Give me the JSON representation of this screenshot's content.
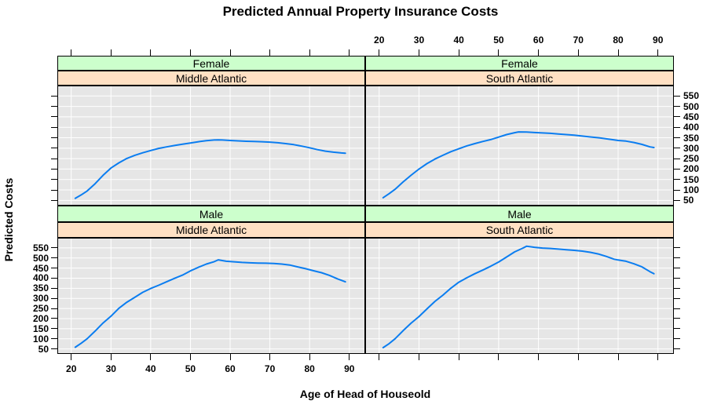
{
  "title": "Predicted Annual Property Insurance Costs",
  "axis_labels": {
    "x": "Age of Head of Houseold",
    "y": "Predicted Costs"
  },
  "colors": {
    "strip_gender_bg": "#ccffcc",
    "strip_region_bg": "#ffe0c3",
    "strip_border": "#000000",
    "panel_bg": "#e6e6e6",
    "gridline": "#ffffff",
    "line": "#0b7df0",
    "tick": "#000000",
    "text": "#000000",
    "background": "#ffffff"
  },
  "chart_data": {
    "type": "line",
    "title": "Predicted Annual Property Insurance Costs",
    "xlabel": "Age of Head of Houseold",
    "ylabel": "Predicted Costs",
    "layout": "2x2 trellis: rows = gender (Female top, Male bottom), columns = region (Middle Atlantic left, South Atlantic right); x tick labels on top for right column and bottom for left column; y tick labels on right for top-right panel and left for bottom-left panel; unlabeled ticks on remaining outer edges",
    "grid": true,
    "xlim": [
      16.5,
      94
    ],
    "ylim": [
      25,
      600
    ],
    "x_ticks": [
      20,
      30,
      40,
      50,
      60,
      70,
      80,
      90
    ],
    "y_ticks": [
      50,
      100,
      150,
      200,
      250,
      300,
      350,
      400,
      450,
      500,
      550
    ],
    "line_color": "#0b7df0",
    "panels": [
      {
        "position": "top-left",
        "gender": "Female",
        "region": "Middle Atlantic",
        "x": [
          21,
          22.5,
          24,
          26,
          28,
          30,
          32,
          34,
          36,
          38,
          40,
          42,
          44,
          46,
          48,
          50,
          52,
          54,
          56,
          57,
          58,
          60,
          62,
          64,
          66,
          68,
          70,
          72,
          74,
          76,
          78,
          80,
          82,
          84,
          86,
          88,
          89
        ],
        "y": [
          60,
          76,
          95,
          130,
          170,
          205,
          230,
          251,
          266,
          278,
          289,
          299,
          306,
          313,
          319,
          325,
          331,
          336,
          339,
          340,
          339,
          337,
          335,
          333,
          332,
          331,
          329,
          326,
          322,
          317,
          310,
          302,
          293,
          286,
          281,
          277,
          276
        ]
      },
      {
        "position": "top-right",
        "gender": "Female",
        "region": "South Atlantic",
        "x": [
          21,
          22.5,
          24,
          26,
          28,
          30,
          32,
          34,
          36,
          38,
          40,
          42,
          44,
          46,
          48,
          50,
          52,
          54,
          55,
          57,
          59,
          61,
          63,
          65,
          67,
          69,
          71,
          73,
          75,
          77,
          79,
          80,
          82,
          84,
          86,
          88,
          89
        ],
        "y": [
          63,
          82,
          103,
          138,
          170,
          200,
          226,
          248,
          266,
          283,
          297,
          311,
          322,
          332,
          341,
          353,
          365,
          374,
          378,
          377,
          375,
          373,
          371,
          368,
          365,
          362,
          358,
          354,
          350,
          345,
          340,
          337,
          334,
          327,
          318,
          306,
          303
        ]
      },
      {
        "position": "bottom-left",
        "gender": "Male",
        "region": "Middle Atlantic",
        "x": [
          21,
          22.5,
          24,
          26,
          28,
          30,
          32,
          34,
          36,
          38,
          40,
          42,
          44,
          46,
          48,
          50,
          52,
          54,
          56,
          57,
          59,
          61,
          63,
          65,
          67,
          69,
          71,
          73,
          75,
          77,
          79,
          81,
          83,
          85,
          87,
          89
        ],
        "y": [
          58,
          78,
          100,
          138,
          178,
          212,
          251,
          281,
          305,
          330,
          349,
          365,
          382,
          399,
          415,
          436,
          454,
          470,
          482,
          491,
          484,
          481,
          478,
          476,
          475,
          474,
          473,
          470,
          465,
          456,
          447,
          437,
          427,
          414,
          397,
          382
        ]
      },
      {
        "position": "bottom-right",
        "gender": "Male",
        "region": "South Atlantic",
        "x": [
          21,
          22.5,
          24,
          26,
          28,
          30,
          32,
          34,
          36,
          38,
          40,
          42,
          44,
          46,
          48,
          50,
          52,
          54,
          56,
          57,
          59,
          61,
          63,
          65,
          67,
          69,
          71,
          73,
          75,
          77,
          79,
          80,
          82,
          84,
          86,
          88,
          89
        ],
        "y": [
          56,
          76,
          100,
          140,
          177,
          210,
          248,
          285,
          316,
          350,
          380,
          402,
          422,
          440,
          459,
          480,
          505,
          530,
          548,
          558,
          553,
          549,
          547,
          544,
          541,
          538,
          534,
          528,
          520,
          508,
          494,
          490,
          484,
          471,
          456,
          432,
          422
        ]
      }
    ]
  }
}
